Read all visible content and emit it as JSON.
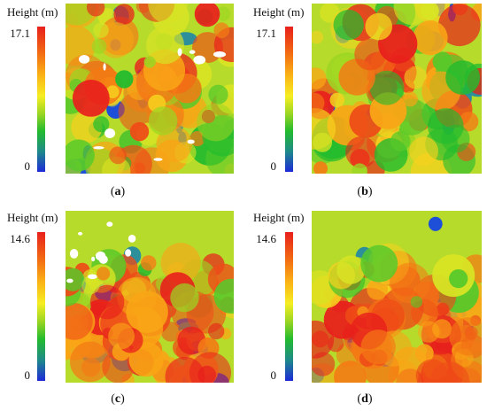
{
  "panels": [
    {
      "id": "a",
      "axis_title": "Height (m)",
      "max_label": "17.1",
      "min_label": "0",
      "caption_letter": "a",
      "blue_amount": 0.35,
      "white_gaps": true
    },
    {
      "id": "b",
      "axis_title": "Height (m)",
      "max_label": "17.1",
      "min_label": "0",
      "caption_letter": "b",
      "blue_amount": 0.45,
      "white_gaps": false
    },
    {
      "id": "c",
      "axis_title": "Height (m)",
      "max_label": "14.6",
      "min_label": "0",
      "caption_letter": "c",
      "blue_amount": 0.55,
      "white_gaps": true
    },
    {
      "id": "d",
      "axis_title": "Height (m)",
      "max_label": "14.6",
      "min_label": "0",
      "caption_letter": "d",
      "blue_amount": 0.5,
      "white_gaps": false
    }
  ],
  "colors": {
    "colorbar": [
      "#e8201c",
      "#f26a13",
      "#fbb516",
      "#f5ee22",
      "#9bd623",
      "#22bb2e",
      "#1f8a8a",
      "#1d2bd8"
    ]
  }
}
